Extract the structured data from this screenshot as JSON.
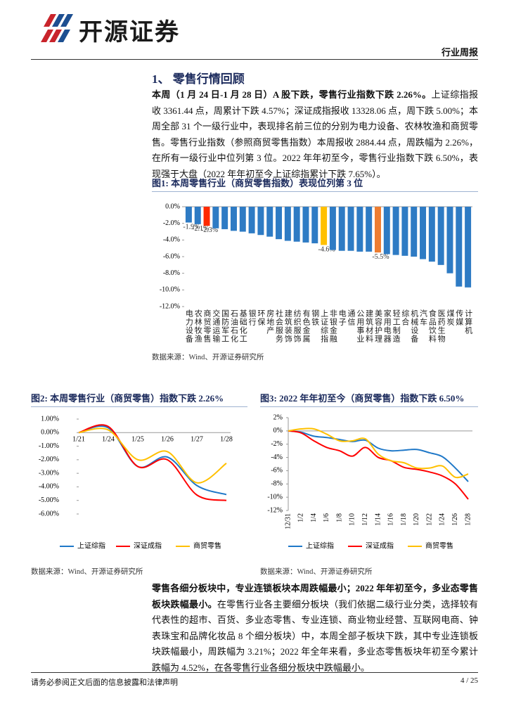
{
  "header": {
    "brand": "开源证券",
    "report_type": "行业周报"
  },
  "section_title": "1、 零售行情回顾",
  "paragraphs": [
    {
      "lead": "本周（1 月 24 日-1 月 28 日）A 股下跌，零售行业指数下跌 2.26%。",
      "body": "上证综指报收 3361.44 点，周累计下跌 4.57%；深证成指报收 13328.06 点，周下跌 5.00%；本周全部 31 个一级行业中，表现排名前三位的分别为电力设备、农林牧渔和商贸零售。零售行业指数（参照商贸零售指数）本周报收 2884.44 点，周跌幅为 2.26%，在所有一级行业中位列第 3 位。2022 年年初至今，零售行业指数下跌 6.50%，表现强于大盘（2022 年年初至今上证综指累计下跌 7.65%）。"
    },
    {
      "lead": "零售各细分板块中，专业连锁板块本周跌幅最小；2022 年年初至今，多业态零售板块跌幅最小。",
      "body": "在零售行业各主要细分板块（我们依据二级行业分类，选择较有代表性的超市、百货、多业态零售、专业连锁、商业物业经营、互联网电商、钟表珠宝和品牌化妆品 8 个细分板块）中，本周全部子板块下跌，其中专业连锁板块跌幅最小，周跌幅为 3.21%；2022 年全年来看，多业态零售板块年初至今累计跌幅为 4.52%，在各零售行业各细分板块中跌幅最小。"
    }
  ],
  "figures": [
    {
      "caption": "图1: 本周零售行业（商贸零售指数）表现位列第 3 位",
      "source": "数据来源：Wind、开源证券研究所"
    },
    {
      "caption": "图2: 本周零售行业（商贸零售）指数下跌 2.26%",
      "source": "数据来源：Wind、开源证券研究所"
    },
    {
      "caption": "图3: 2022 年年初至今（商贸零售）指数下跌 6.50%",
      "source": "数据来源：Wind、开源证券研究所"
    }
  ],
  "chart_data": [
    {
      "type": "bar",
      "categories": [
        "电力设备",
        "农林牧渔",
        "商贸零售",
        "交通运输",
        "国防军工",
        "石油石化",
        "基础化工",
        "银行",
        "环保",
        "房地产",
        "社会服务",
        "建筑装饰",
        "纺织服饰",
        "有色金属",
        "钢铁",
        "上证综指",
        "非银金融",
        "电子",
        "通信",
        "公用事业",
        "建筑材料",
        "美容护理",
        "家用电器",
        "轻工制造",
        "综合",
        "机械设备",
        "汽车",
        "食品饮料",
        "医药生物",
        "煤炭",
        "传媒",
        "计算机"
      ],
      "values": [
        -1.9,
        -2.1,
        -2.3,
        -2.6,
        -2.7,
        -2.9,
        -3.0,
        -3.2,
        -3.4,
        -3.6,
        -3.9,
        -4.1,
        -4.2,
        -4.3,
        -4.4,
        -4.6,
        -5.2,
        -5.3,
        -5.3,
        -5.4,
        -5.4,
        -5.5,
        -5.7,
        -5.8,
        -5.9,
        -6.0,
        -6.3,
        -6.6,
        -7.0,
        -8.0,
        -9.6,
        -9.7
      ],
      "value_labels": [
        "-1.9%",
        "-2.1%",
        "-2.3%",
        null,
        null,
        null,
        null,
        null,
        null,
        null,
        null,
        null,
        null,
        null,
        null,
        "-4.6%",
        null,
        null,
        null,
        null,
        null,
        "-5.5%",
        null,
        null,
        null,
        null,
        null,
        null,
        null,
        null,
        null,
        null
      ],
      "colors": [
        "#2e7bc4",
        "#2e7bc4",
        "#ff2a00",
        "#2e7bc4",
        "#2e7bc4",
        "#2e7bc4",
        "#2e7bc4",
        "#2e7bc4",
        "#2e7bc4",
        "#2e7bc4",
        "#2e7bc4",
        "#2e7bc4",
        "#2e7bc4",
        "#2e7bc4",
        "#2e7bc4",
        "#ffc000",
        "#2e7bc4",
        "#2e7bc4",
        "#2e7bc4",
        "#2e7bc4",
        "#2e7bc4",
        "#ed7d31",
        "#2e7bc4",
        "#2e7bc4",
        "#2e7bc4",
        "#2e7bc4",
        "#2e7bc4",
        "#2e7bc4",
        "#2e7bc4",
        "#2e7bc4",
        "#2e7bc4",
        "#2e7bc4"
      ],
      "ylim": [
        -12,
        0
      ],
      "yticks": [
        {
          "value": 0,
          "label": "0.0%"
        },
        {
          "value": -2,
          "label": "-2.0%"
        },
        {
          "value": -4,
          "label": "-4.0%"
        },
        {
          "value": -6,
          "label": "-6.0%"
        },
        {
          "value": -8,
          "label": "-8.0%"
        },
        {
          "value": -10,
          "label": "-10.0%"
        },
        {
          "value": -12,
          "label": "-12.0%"
        }
      ]
    },
    {
      "type": "line",
      "categories": [
        "1/21",
        "1/24",
        "1/25",
        "1/26",
        "1/27",
        "1/28"
      ],
      "series": [
        {
          "name": "上证综指",
          "color": "#1f78c8",
          "values": [
            0,
            0.35,
            -2.5,
            -1.8,
            -3.9,
            -4.57
          ]
        },
        {
          "name": "深证成指",
          "color": "#ff0000",
          "values": [
            0,
            0.45,
            -2.5,
            -2.0,
            -4.6,
            -5.0
          ]
        },
        {
          "name": "商贸零售",
          "color": "#ffc000",
          "values": [
            0,
            0.2,
            -2.0,
            -1.4,
            -3.7,
            -2.26
          ]
        }
      ],
      "ylim": [
        -6,
        1
      ],
      "yticks": [
        {
          "value": 1,
          "label": "1.00%"
        },
        {
          "value": 0,
          "label": "0.00%"
        },
        {
          "value": -1,
          "label": "-1.00%"
        },
        {
          "value": -2,
          "label": "-2.00%"
        },
        {
          "value": -3,
          "label": "-3.00%"
        },
        {
          "value": -4,
          "label": "-4.00%"
        },
        {
          "value": -5,
          "label": "-5.00%"
        },
        {
          "value": -6,
          "label": "-6.00%"
        }
      ],
      "legend": "bottom"
    },
    {
      "type": "line",
      "categories": [
        "12/31",
        "1/2",
        "1/4",
        "1/6",
        "1/8",
        "1/10",
        "1/12",
        "1/14",
        "1/16",
        "1/18",
        "1/20",
        "1/22",
        "1/24",
        "1/26",
        "1/28"
      ],
      "series": [
        {
          "name": "上证综指",
          "color": "#1f78c8",
          "values": [
            0,
            -0.2,
            -0.8,
            -1.0,
            -1.3,
            -1.6,
            -1.4,
            -2.6,
            -3.0,
            -2.9,
            -2.8,
            -3.3,
            -3.9,
            -5.6,
            -7.65
          ]
        },
        {
          "name": "深证成指",
          "color": "#ff0000",
          "values": [
            0,
            -0.3,
            -1.5,
            -2.5,
            -3.0,
            -3.8,
            -2.5,
            -4.0,
            -4.5,
            -5.5,
            -5.8,
            -6.2,
            -6.8,
            -8.0,
            -10.3
          ]
        },
        {
          "name": "商贸零售",
          "color": "#ffc000",
          "values": [
            0,
            0.3,
            0.3,
            -0.5,
            -1.5,
            -1.5,
            -1.2,
            -3.5,
            -4.5,
            -4.8,
            -5.6,
            -5.6,
            -5.3,
            -7.0,
            -6.5
          ]
        }
      ],
      "ylim": [
        -12,
        2
      ],
      "yticks": [
        {
          "value": 2,
          "label": "2%"
        },
        {
          "value": 0,
          "label": "0%"
        },
        {
          "value": -2,
          "label": "-2%"
        },
        {
          "value": -4,
          "label": "-4%"
        },
        {
          "value": -6,
          "label": "-6%"
        },
        {
          "value": -8,
          "label": "-8%"
        },
        {
          "value": -10,
          "label": "-10%"
        },
        {
          "value": -12,
          "label": "-12%"
        }
      ],
      "legend": "bottom"
    }
  ],
  "footer": {
    "disclaimer": "请务必参阅正文后面的信息披露和法律声明",
    "page": "4 / 25"
  }
}
